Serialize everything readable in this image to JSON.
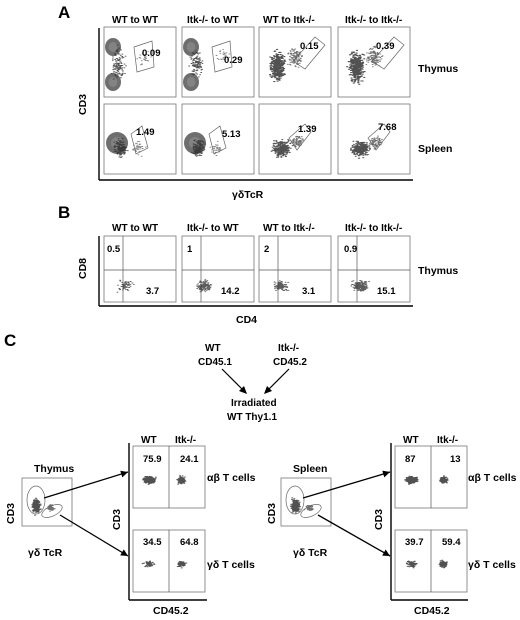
{
  "panel_labels": [
    "A",
    "B",
    "C"
  ],
  "groups": [
    "WT to WT",
    "Itk-/- to WT",
    "WT to Itk-/-",
    "Itk-/- to Itk-/-"
  ],
  "panel_a": {
    "y_axis": "CD3",
    "x_axis": "γδTcR",
    "rows": [
      {
        "tissue": "Thymus",
        "values": [
          "0.09",
          "0.29",
          "0.15",
          "0.39"
        ]
      },
      {
        "tissue": "Spleen",
        "values": [
          "1.49",
          "5.13",
          "1.39",
          "7.68"
        ]
      }
    ]
  },
  "panel_b": {
    "y_axis": "CD8",
    "x_axis": "CD4",
    "tissue": "Thymus",
    "upper_left": [
      "0.5",
      "1",
      "2",
      "0.9"
    ],
    "lower_right": [
      "3.7",
      "14.2",
      "3.1",
      "15.1"
    ]
  },
  "panel_c": {
    "donor1_line1": "WT",
    "donor1_line2": "CD45.1",
    "donor2_line1": "Itk-/-",
    "donor2_line2": "CD45.2",
    "recipient_line1": "Irradiated",
    "recipient_line2": "WT Thy1.1",
    "sides": [
      {
        "tissue": "Thymus",
        "gate_y": "CD3",
        "gate_x": "γδ TcR",
        "plot_y": "CD3",
        "plot_x": "CD45.2",
        "col_wt": "WT",
        "col_itk": "Itk-/-",
        "ab_label": "αβ T cells",
        "gd_label": "γδ T cells",
        "ab_values": [
          "75.9",
          "24.1"
        ],
        "gd_values": [
          "34.5",
          "64.8"
        ]
      },
      {
        "tissue": "Spleen",
        "gate_y": "CD3",
        "gate_x": "γδ TcR",
        "plot_y": "CD3",
        "plot_x": "CD45.2",
        "col_wt": "WT",
        "col_itk": "Itk-/-",
        "ab_label": "αβ T cells",
        "gd_label": "γδ T cells",
        "ab_values": [
          "87",
          "13"
        ],
        "gd_values": [
          "39.7",
          "59.4"
        ]
      }
    ]
  },
  "colors": {
    "dots": "#333333",
    "axis": "#000000",
    "gate": "#666666"
  }
}
